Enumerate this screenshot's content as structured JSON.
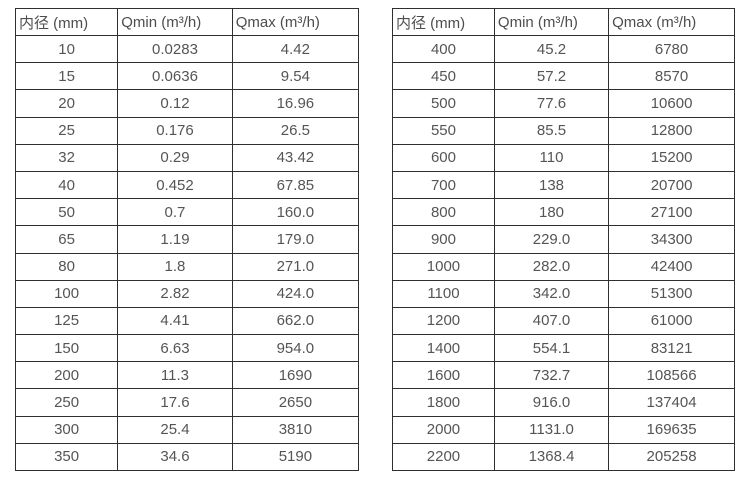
{
  "colors": {
    "background": "#ffffff",
    "border": "#2f2f2f",
    "text": "#555555"
  },
  "tables": [
    {
      "name": "flow-rate-table-small-diameters",
      "headers": [
        "内径 (mm)",
        "Qmin (m³/h)",
        "Qmax (m³/h)"
      ],
      "rows": [
        [
          "10",
          "0.0283",
          "4.42"
        ],
        [
          "15",
          "0.0636",
          "9.54"
        ],
        [
          "20",
          "0.12",
          "16.96"
        ],
        [
          "25",
          "0.176",
          "26.5"
        ],
        [
          "32",
          "0.29",
          "43.42"
        ],
        [
          "40",
          "0.452",
          "67.85"
        ],
        [
          "50",
          "0.7",
          "160.0"
        ],
        [
          "65",
          "1.19",
          "179.0"
        ],
        [
          "80",
          "1.8",
          "271.0"
        ],
        [
          "100",
          "2.82",
          "424.0"
        ],
        [
          "125",
          "4.41",
          "662.0"
        ],
        [
          "150",
          "6.63",
          "954.0"
        ],
        [
          "200",
          "11.3",
          "1690"
        ],
        [
          "250",
          "17.6",
          "2650"
        ],
        [
          "300",
          "25.4",
          "3810"
        ],
        [
          "350",
          "34.6",
          "5190"
        ]
      ]
    },
    {
      "name": "flow-rate-table-large-diameters",
      "headers": [
        "内径 (mm)",
        "Qmin (m³/h)",
        "Qmax (m³/h)"
      ],
      "rows": [
        [
          "400",
          "45.2",
          "6780"
        ],
        [
          "450",
          "57.2",
          "8570"
        ],
        [
          "500",
          "77.6",
          "10600"
        ],
        [
          "550",
          "85.5",
          "12800"
        ],
        [
          "600",
          "110",
          "15200"
        ],
        [
          "700",
          "138",
          "20700"
        ],
        [
          "800",
          "180",
          "27100"
        ],
        [
          "900",
          "229.0",
          "34300"
        ],
        [
          "1000",
          "282.0",
          "42400"
        ],
        [
          "1100",
          "342.0",
          "51300"
        ],
        [
          "1200",
          "407.0",
          "61000"
        ],
        [
          "1400",
          "554.1",
          "83121"
        ],
        [
          "1600",
          "732.7",
          "108566"
        ],
        [
          "1800",
          "916.0",
          "137404"
        ],
        [
          "2000",
          "1131.0",
          "169635"
        ],
        [
          "2200",
          "1368.4",
          "205258"
        ]
      ]
    }
  ]
}
